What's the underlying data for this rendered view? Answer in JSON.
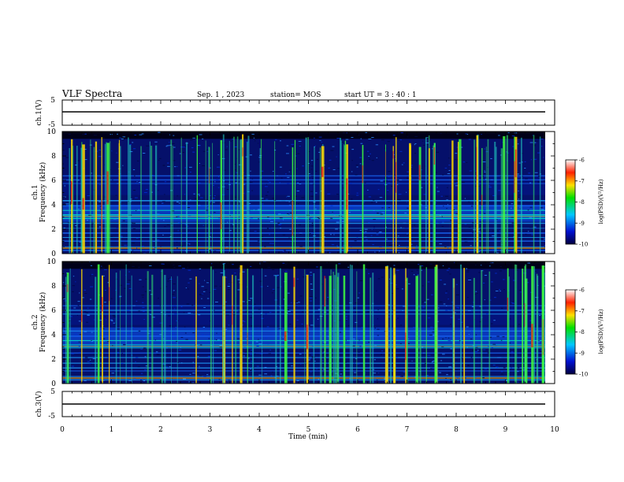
{
  "header": {
    "title": "VLF Spectra",
    "date": "Sep. 1 , 2023",
    "station": "station= MOS",
    "start": "start UT =  3 : 40 : 1"
  },
  "chart_data": [
    {
      "type": "line",
      "panel": "ch1-waveform",
      "ylabel": "ch.1(V)",
      "ylim": [
        -5,
        5
      ],
      "y_ticks": [
        "5",
        "-5"
      ],
      "x": [
        0,
        9.8
      ],
      "values": [
        0,
        0
      ]
    },
    {
      "type": "heatmap",
      "panel": "ch1-spectrogram",
      "ylabel": [
        "ch.1",
        "Frequency (kHz)"
      ],
      "ylim": [
        0,
        10
      ],
      "y_ticks": [
        "0",
        "2",
        "4",
        "6",
        "8",
        "10"
      ],
      "xlim": [
        0,
        10
      ],
      "colorbar": {
        "label": "log(PSD)(V²/Hz)",
        "range": [
          -10,
          -6
        ],
        "ticks": [
          "-6",
          "-7",
          "-8",
          "-9",
          "-10"
        ]
      }
    },
    {
      "type": "heatmap",
      "panel": "ch2-spectrogram",
      "ylabel": [
        "ch.2",
        "Frequency (kHz)"
      ],
      "ylim": [
        0,
        10
      ],
      "y_ticks": [
        "0",
        "2",
        "4",
        "6",
        "8",
        "10"
      ],
      "xlim": [
        0,
        10
      ],
      "colorbar": {
        "label": "log(PSD)(V²/Hz)",
        "range": [
          -10,
          -6
        ],
        "ticks": [
          "-6",
          "-7",
          "-8",
          "-9",
          "-10"
        ]
      }
    },
    {
      "type": "line",
      "panel": "ch3-waveform",
      "ylabel": "ch.3(V)",
      "ylim": [
        -5,
        5
      ],
      "y_ticks": [
        "5",
        "-5"
      ],
      "x": [
        0,
        9.8
      ],
      "values": [
        0,
        0
      ]
    }
  ],
  "x_axis": {
    "label": "Time (min)",
    "ticks": [
      "0",
      "1",
      "2",
      "3",
      "4",
      "5",
      "6",
      "7",
      "8",
      "9",
      "10"
    ]
  },
  "colors": {
    "background": "#000033",
    "low": "#0a1fa8",
    "mid": "#00e6d2",
    "high": "#ffd800",
    "peak": "#e0201a"
  }
}
